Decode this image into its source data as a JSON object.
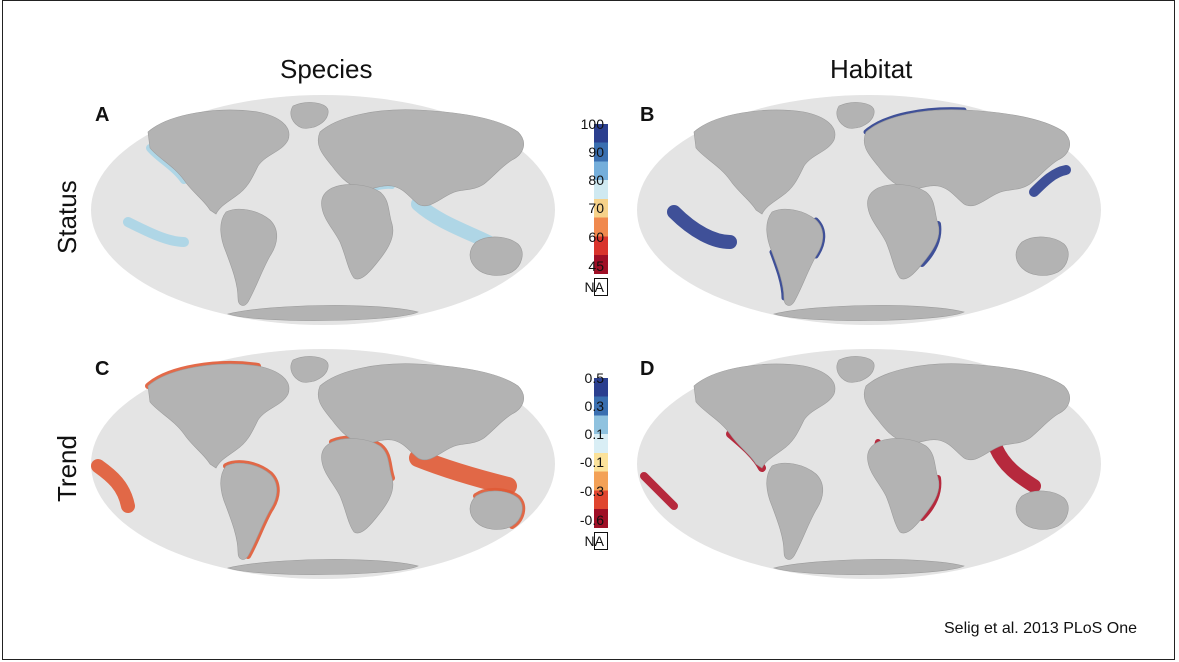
{
  "columns": {
    "left": "Species",
    "right": "Habitat"
  },
  "rows": {
    "top": "Status",
    "bottom": "Trend"
  },
  "panels": {
    "a": "A",
    "b": "B",
    "c": "C",
    "d": "D"
  },
  "status_legend": {
    "ticks": [
      "100",
      "90",
      "80",
      "70",
      "60",
      "45",
      "NA"
    ],
    "colors": [
      "#2b3f8f",
      "#3a6fb0",
      "#74aedb",
      "#cfe9f1",
      "#f6d28a",
      "#f0894e",
      "#d9342c",
      "#9f0f26"
    ]
  },
  "trend_legend": {
    "ticks": [
      "0.5",
      "0.3",
      "0.1",
      "-0.1",
      "-0.3",
      "-0.6",
      "NA"
    ],
    "colors": [
      "#2b3f8f",
      "#3a6fb0",
      "#8fc2df",
      "#d9eef5",
      "#fbe29a",
      "#f3a156",
      "#e0452f",
      "#9f0f26"
    ]
  },
  "map_colors": {
    "ocean": "#e4e4e4",
    "land": "#b3b3b3",
    "species_status": "#a9d4e6",
    "habitat_status": "#2c3f8f",
    "species_trend": "#e05a35",
    "habitat_trend": "#b0142a"
  },
  "credit": "Selig et al. 2013 PLoS One"
}
